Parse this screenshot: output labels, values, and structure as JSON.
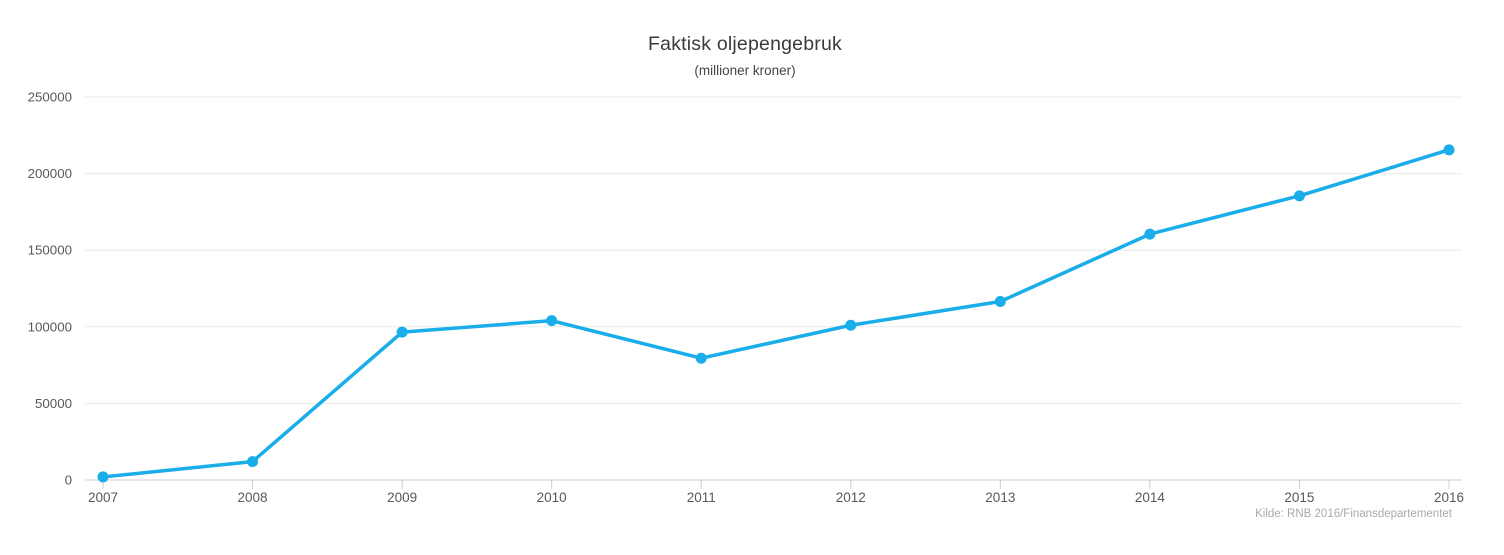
{
  "chart_data": {
    "type": "line",
    "title": "Faktisk oljepengebruk",
    "subtitle": "(millioner kroner)",
    "source": "Kilde: RNB 2016/Finansdepartementet",
    "categories": [
      "2007",
      "2008",
      "2009",
      "2010",
      "2011",
      "2012",
      "2013",
      "2014",
      "2015",
      "2016"
    ],
    "values": [
      2000,
      12000,
      96500,
      104000,
      79500,
      101000,
      116500,
      160500,
      185500,
      215500
    ],
    "xlabel": "",
    "ylabel": "",
    "ylim": [
      0,
      250000
    ],
    "ytick_step": 50000,
    "ytick_labels": [
      "0",
      "50000",
      "100000",
      "150000",
      "200000",
      "250000"
    ],
    "grid": true,
    "legend": false,
    "colors": {
      "line": "#19ade9",
      "marker": "#19ade9",
      "grid": "#e9e9e9",
      "axis": "#cccccc",
      "tick_label": "#58595b",
      "title": "#3b3b3b",
      "source": "#a9a9a9"
    }
  }
}
